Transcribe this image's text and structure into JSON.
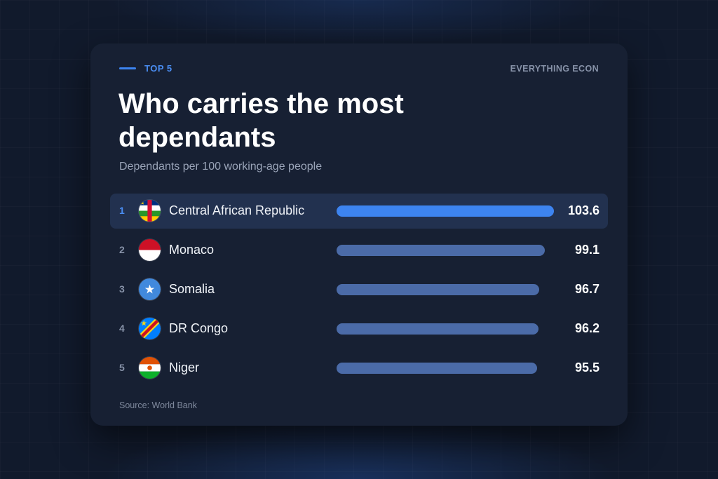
{
  "header": {
    "eyebrow": "TOP 5",
    "brand": "EVERYTHING ECON",
    "title": "Who carries the most dependants",
    "subtitle": "Dependants per 100 working-age people"
  },
  "footer": {
    "source": "Source: World Bank"
  },
  "colors": {
    "accent": "#3d84f0",
    "bar": "#4b6ba8",
    "card": "#172033",
    "highlight_row": "#22314f"
  },
  "chart_data": {
    "type": "bar",
    "orientation": "horizontal",
    "title": "Who carries the most dependants",
    "subtitle": "Dependants per 100 working-age people",
    "xlim": [
      0,
      103.6
    ],
    "categories": [
      "Central African Republic",
      "Monaco",
      "Somalia",
      "DR Congo",
      "Niger"
    ],
    "values": [
      103.6,
      99.1,
      96.7,
      96.2,
      95.5
    ],
    "value_labels": [
      "103.6",
      "99.1",
      "96.7",
      "96.2",
      "95.5"
    ],
    "ranks": [
      "1",
      "2",
      "3",
      "4",
      "5"
    ],
    "flag_icons": [
      "flag-central-african-republic-icon",
      "flag-monaco-icon",
      "flag-somalia-icon",
      "flag-dr-congo-icon",
      "flag-niger-icon"
    ],
    "highlighted_index": 0
  }
}
